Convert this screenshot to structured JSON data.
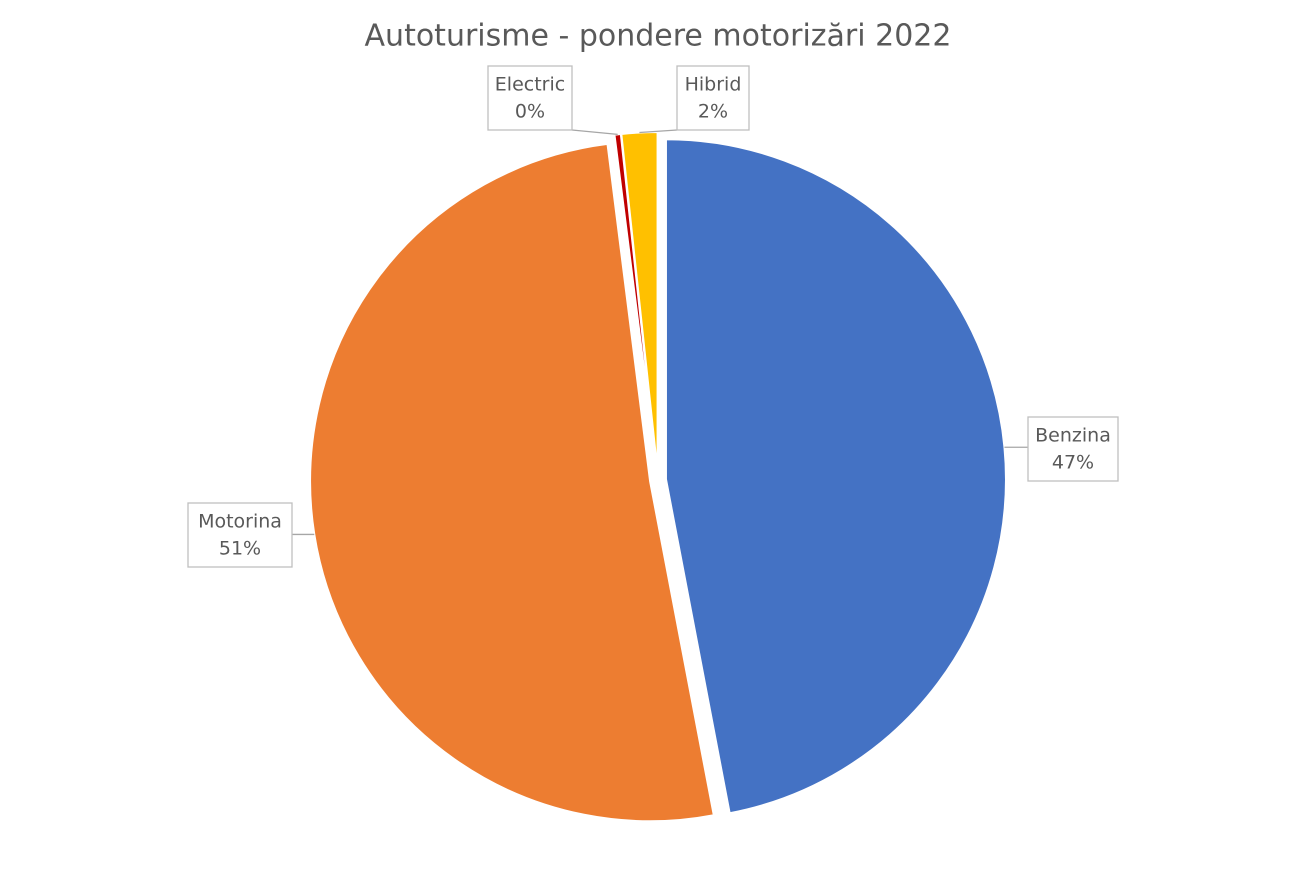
{
  "chart_data": {
    "type": "pie",
    "title": "Autoturisme - pondere motorizări 2022",
    "categories": [
      "Benzina",
      "Motorina",
      "Electric",
      "Hibrid"
    ],
    "values": [
      47,
      51,
      0.3,
      1.7
    ],
    "value_labels": [
      "47%",
      "51%",
      "0%",
      "2%"
    ],
    "colors": [
      "#4472c4",
      "#ed7d31",
      "#c00000",
      "#ffc000"
    ]
  }
}
